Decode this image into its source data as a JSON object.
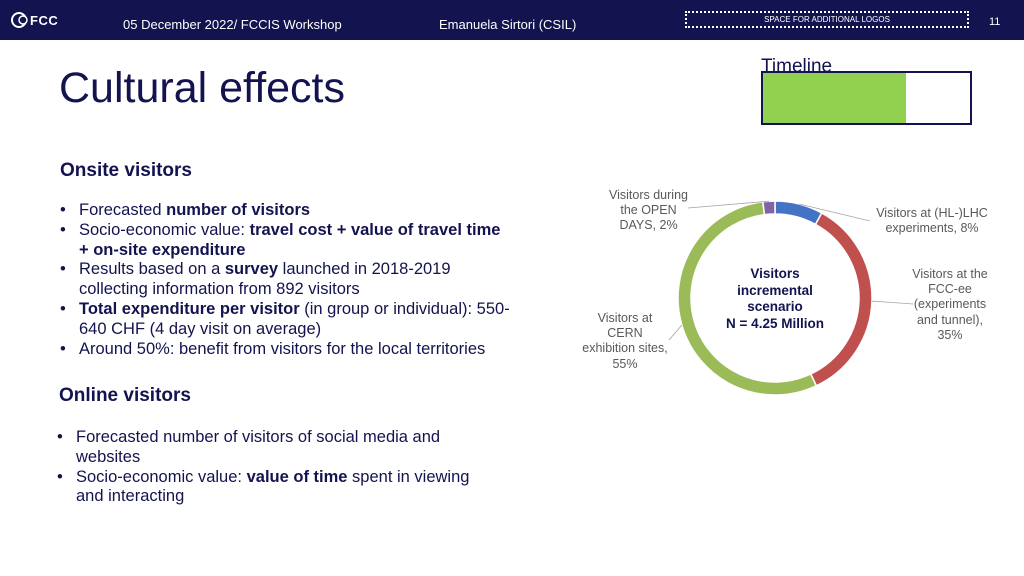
{
  "header": {
    "logo_text": "FCC",
    "event": "05 December 2022/ FCCIS Workshop",
    "author": "Emanuela Sirtori (CSIL)",
    "logo_placeholder": "SPACE FOR ADDITIONAL LOGOS",
    "page_number": "11",
    "bar_color": "#13134f"
  },
  "title": "Cultural effects",
  "timeline": {
    "label": "Timeline",
    "progress_fraction": 0.69,
    "fill_color": "#92d050"
  },
  "onsite": {
    "heading": "Onsite visitors",
    "bullets": [
      [
        {
          "t": "Forecasted "
        },
        {
          "t": "number of visitors",
          "b": true
        }
      ],
      [
        {
          "t": "Socio-economic value: "
        },
        {
          "t": "travel cost + value of travel time + on-site expenditure",
          "b": true
        }
      ],
      [
        {
          "t": "Results based on a "
        },
        {
          "t": "survey",
          "b": true
        },
        {
          "t": " launched in 2018-2019 collecting information from 892 visitors"
        }
      ],
      [
        {
          "t": "Total expenditure per visitor",
          "b": true
        },
        {
          "t": " (in group or individual): 550-640 CHF (4 day visit on average)"
        }
      ],
      [
        {
          "t": "Around 50%: benefit from visitors for the local territories"
        }
      ]
    ]
  },
  "online": {
    "heading": "Online visitors",
    "bullets": [
      [
        {
          "t": "Forecasted number of visitors of social media and websites"
        }
      ],
      [
        {
          "t": "Socio-economic value: "
        },
        {
          "t": "value of time",
          "b": true
        },
        {
          "t": " spent in viewing and interacting"
        }
      ]
    ]
  },
  "chart_data": {
    "type": "pie",
    "donut": true,
    "center_label": [
      "Visitors",
      "incremental",
      "scenario",
      "N = 4.25 Million"
    ],
    "slices": [
      {
        "name": "Visitors at (HL-)LHC experiments",
        "label": [
          "Visitors at (HL-)LHC",
          "experiments, 8%"
        ],
        "value": 8,
        "color": "#4472c4"
      },
      {
        "name": "Visitors at the FCC-ee (experiments and tunnel)",
        "label": [
          "Visitors at the",
          "FCC-ee",
          "(experiments",
          "and tunnel),",
          "35%"
        ],
        "value": 35,
        "color": "#c0504d"
      },
      {
        "name": "Visitors at CERN exhibition sites",
        "label": [
          "Visitors at",
          "CERN",
          "exhibition sites,",
          "55%"
        ],
        "value": 55,
        "color": "#9bbb59"
      },
      {
        "name": "Visitors during the OPEN DAYS",
        "label": [
          "Visitors during",
          "the OPEN",
          "DAYS, 2%"
        ],
        "value": 2,
        "color": "#8064a2"
      }
    ]
  }
}
